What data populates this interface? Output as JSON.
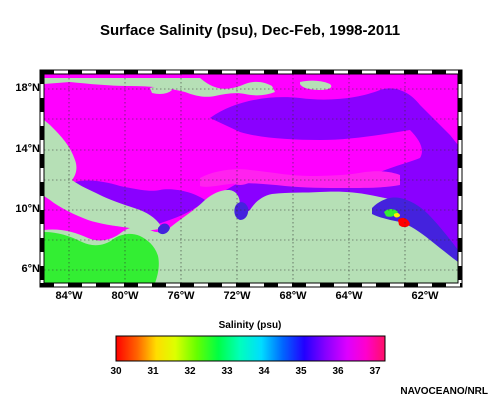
{
  "title": "Surface Salinity (psu), Dec-Feb, 1998-2011",
  "map": {
    "lat_ticks": [
      "18°N",
      "14°N",
      "10°N",
      "6°N"
    ],
    "lon_ticks": [
      "84°W",
      "80°W",
      "76°W",
      "72°W",
      "68°W",
      "64°W",
      "62°W"
    ],
    "colors": {
      "land": "#b6e0b6",
      "salinity_37": "#ff00ff",
      "salinity_36": "#8a00ff",
      "salinity_35": "#4422dd",
      "salinity_33": "#33ee33",
      "salinity_31": "#ffee00",
      "salinity_30": "#ff0000"
    }
  },
  "colorbar": {
    "title": "Salinity (psu)",
    "ticks": [
      "30",
      "31",
      "32",
      "33",
      "34",
      "35",
      "36",
      "37"
    ]
  },
  "credit": "NAVOCEANO/NRL"
}
